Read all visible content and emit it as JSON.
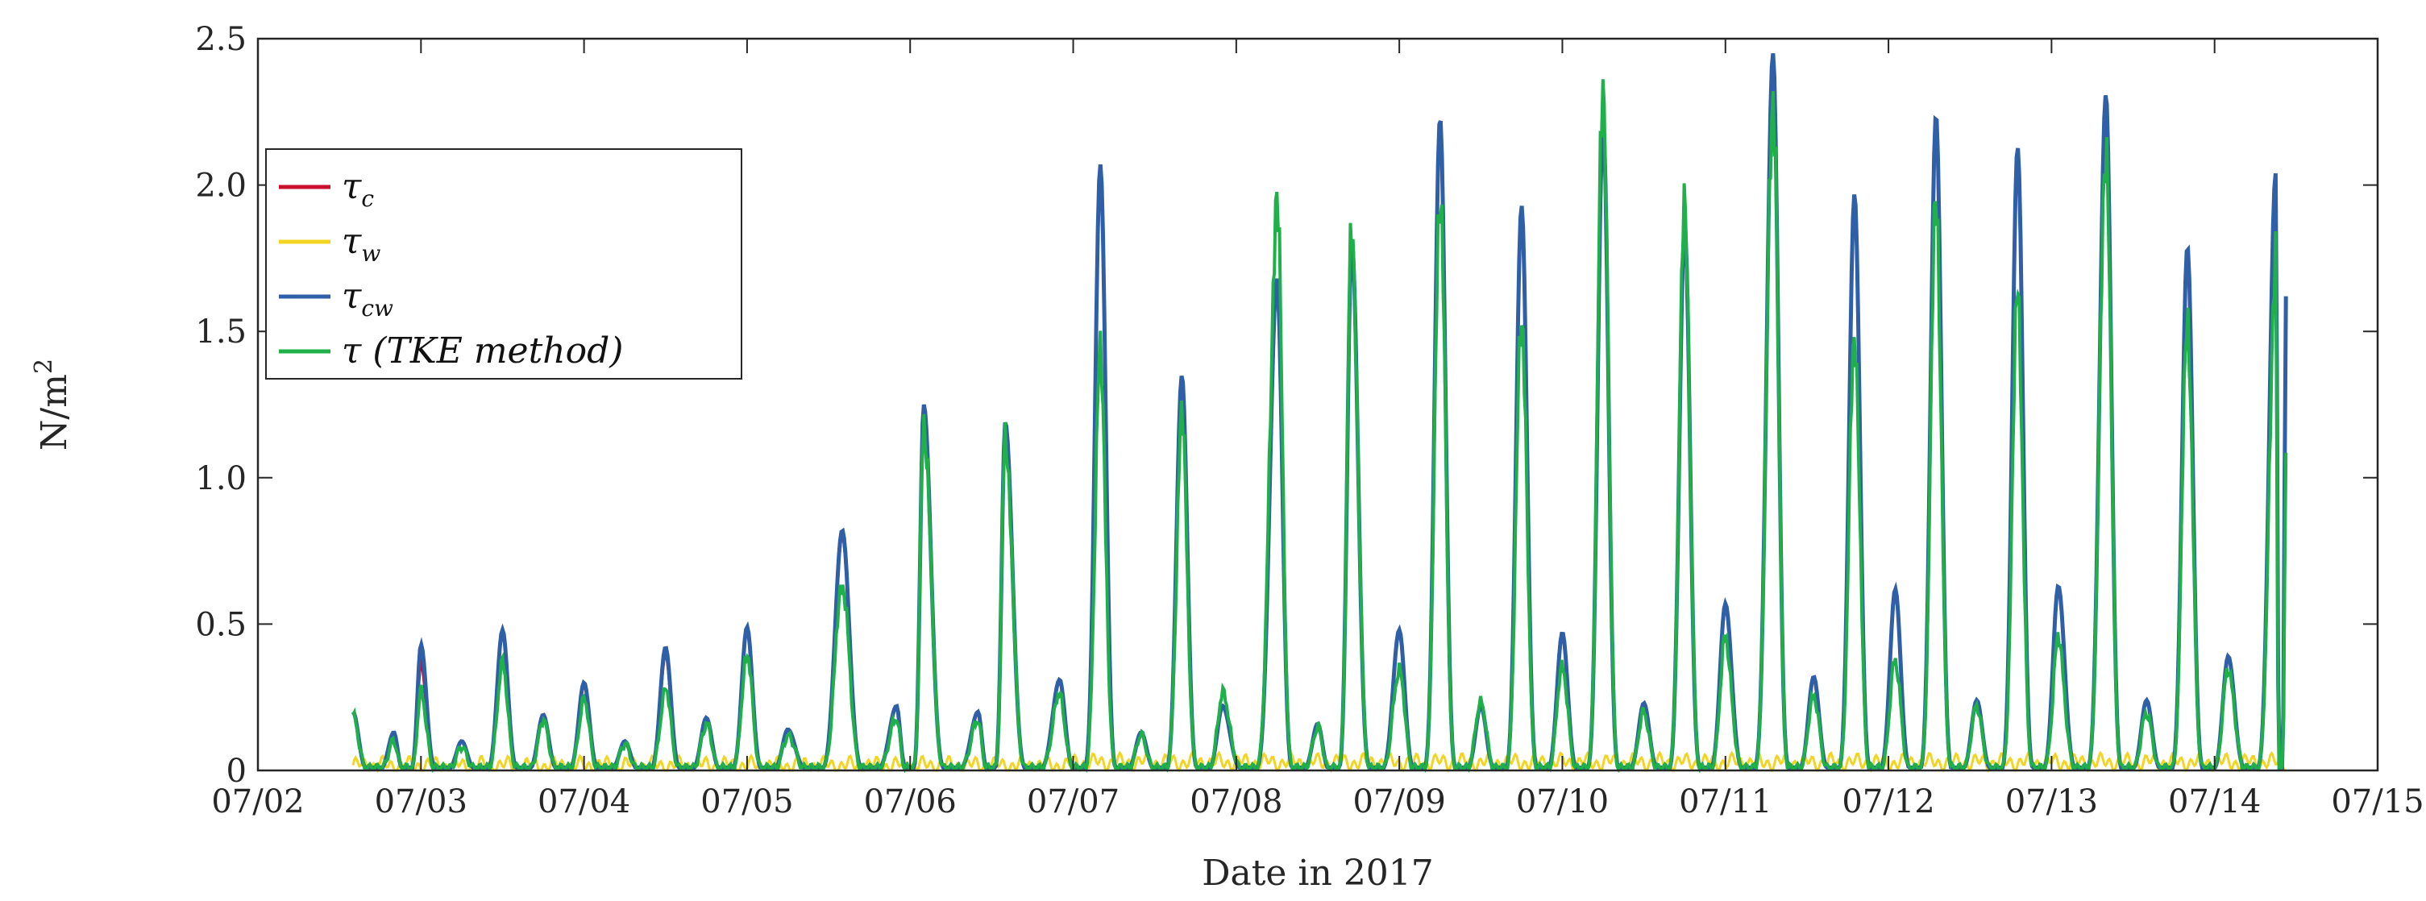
{
  "chart_data": {
    "type": "line",
    "xlabel": "Date in 2017",
    "ylabel": "N/m",
    "ylabel_superscript": "2",
    "xlim": [
      "07/02",
      "07/15"
    ],
    "ylim": [
      0,
      2.5
    ],
    "yticks": [
      "0",
      "0.5",
      "1.0",
      "1.5",
      "2.0",
      "2.5"
    ],
    "xticks": [
      "07/02",
      "07/03",
      "07/04",
      "07/05",
      "07/06",
      "07/07",
      "07/08",
      "07/09",
      "07/10",
      "07/11",
      "07/12",
      "07/13",
      "07/14",
      "07/15"
    ],
    "grid": false,
    "legend_position": "upper-left",
    "series": [
      {
        "name": "τc",
        "name_base": "τ",
        "name_sub": "c",
        "name_suffix": "",
        "color": "#c8102e"
      },
      {
        "name": "τw",
        "name_base": "τ",
        "name_sub": "w",
        "name_suffix": "",
        "color": "#f2d522"
      },
      {
        "name": "τcw",
        "name_base": "τ",
        "name_sub": "cw",
        "name_suffix": "",
        "color": "#2e5fa7"
      },
      {
        "name": "τ (TKE method)",
        "name_base": "τ",
        "name_sub": "",
        "name_suffix": " (TKE method)",
        "color": "#1fb04a"
      }
    ],
    "peaks": [
      {
        "date": "07/02 14:00",
        "cw": 0.2,
        "tke": 0.19
      },
      {
        "date": "07/02 20:00",
        "cw": 0.13,
        "tke": 0.1
      },
      {
        "date": "07/03 00:00",
        "cw": 0.43,
        "tke": 0.27,
        "c": 0.37
      },
      {
        "date": "07/03 06:00",
        "cw": 0.1,
        "tke": 0.08
      },
      {
        "date": "07/03 12:00",
        "cw": 0.48,
        "tke": 0.36
      },
      {
        "date": "07/03 18:00",
        "cw": 0.19,
        "tke": 0.17
      },
      {
        "date": "07/04 00:00",
        "cw": 0.3,
        "tke": 0.24
      },
      {
        "date": "07/04 06:00",
        "cw": 0.1,
        "tke": 0.09
      },
      {
        "date": "07/04 12:00",
        "cw": 0.42,
        "tke": 0.28,
        "c": 0.4
      },
      {
        "date": "07/04 18:00",
        "cw": 0.18,
        "tke": 0.16
      },
      {
        "date": "07/05 00:00",
        "cw": 0.49,
        "tke": 0.4
      },
      {
        "date": "07/05 06:00",
        "cw": 0.14,
        "tke": 0.12
      },
      {
        "date": "07/05 14:00",
        "cw": 0.82,
        "tke": 0.64
      },
      {
        "date": "07/05 22:00",
        "cw": 0.22,
        "tke": 0.18
      },
      {
        "date": "07/06 02:00",
        "cw": 1.25,
        "tke": 1.2
      },
      {
        "date": "07/06 10:00",
        "cw": 0.2,
        "tke": 0.17
      },
      {
        "date": "07/06 14:00",
        "cw": 1.19,
        "tke": 1.14
      },
      {
        "date": "07/06 22:00",
        "cw": 0.31,
        "tke": 0.26
      },
      {
        "date": "07/07 04:00",
        "cw": 2.07,
        "tke": 1.41
      },
      {
        "date": "07/07 10:00",
        "cw": 0.13,
        "tke": 0.12
      },
      {
        "date": "07/07 16:00",
        "cw": 1.35,
        "tke": 1.2
      },
      {
        "date": "07/07 22:00",
        "cw": 0.22,
        "tke": 0.26
      },
      {
        "date": "07/08 06:00",
        "cw": 1.68,
        "tke": 1.94
      },
      {
        "date": "07/08 12:00",
        "cw": 0.16,
        "tke": 0.15
      },
      {
        "date": "07/08 17:00",
        "cw": 1.81,
        "tke": 1.84
      },
      {
        "date": "07/09 00:00",
        "cw": 0.48,
        "tke": 0.35
      },
      {
        "date": "07/09 06:00",
        "cw": 2.23,
        "tke": 2.0
      },
      {
        "date": "07/09 12:00",
        "cw": 0.22,
        "tke": 0.24
      },
      {
        "date": "07/09 18:00",
        "cw": 1.93,
        "tke": 1.57
      },
      {
        "date": "07/10 00:00",
        "cw": 0.47,
        "tke": 0.36
      },
      {
        "date": "07/10 06:00",
        "cw": 2.22,
        "tke": 2.34
      },
      {
        "date": "07/10 12:00",
        "cw": 0.23,
        "tke": 0.2
      },
      {
        "date": "07/10 18:00",
        "cw": 1.86,
        "tke": 1.92
      },
      {
        "date": "07/11 00:00",
        "cw": 0.57,
        "tke": 0.45
      },
      {
        "date": "07/11 07:00",
        "cw": 2.45,
        "tke": 2.33
      },
      {
        "date": "07/11 13:00",
        "cw": 0.32,
        "tke": 0.26
      },
      {
        "date": "07/11 19:00",
        "cw": 1.97,
        "tke": 1.5
      },
      {
        "date": "07/12 01:00",
        "cw": 0.62,
        "tke": 0.38
      },
      {
        "date": "07/12 07:00",
        "cw": 2.24,
        "tke": 1.96
      },
      {
        "date": "07/12 13:00",
        "cw": 0.24,
        "tke": 0.22
      },
      {
        "date": "07/12 19:00",
        "cw": 2.13,
        "tke": 1.62
      },
      {
        "date": "07/13 01:00",
        "cw": 0.63,
        "tke": 0.45
      },
      {
        "date": "07/13 08:00",
        "cw": 2.31,
        "tke": 2.15
      },
      {
        "date": "07/13 14:00",
        "cw": 0.24,
        "tke": 0.2
      },
      {
        "date": "07/13 20:00",
        "cw": 1.79,
        "tke": 1.55
      },
      {
        "date": "07/14 02:00",
        "cw": 0.39,
        "tke": 0.35
      },
      {
        "date": "07/14 09:00",
        "cw": 2.04,
        "tke": 1.77
      }
    ],
    "end": {
      "date": "07/14 10:30",
      "cw": 1.62,
      "tke": 1.1,
      "c": 1.58,
      "w": 0.08
    }
  }
}
